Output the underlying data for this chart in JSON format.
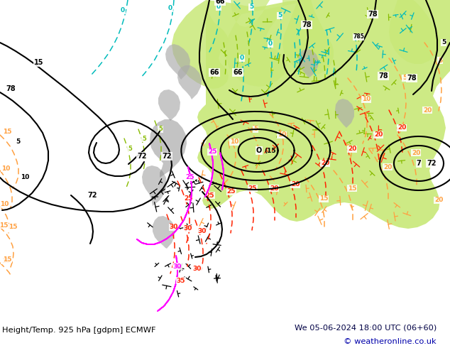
{
  "title_left": "Height/Temp. 925 hPa [gdpm] ECMWF",
  "title_right": "We 05-06-2024 18:00 UTC (06+60)",
  "copyright": "© weatheronline.co.uk",
  "bg_color": "#ffffff",
  "bottom_bar_bg": "#d4d4d4",
  "text_color_left": "#000000",
  "text_color_right": "#000044",
  "text_color_copyright": "#0000aa",
  "figsize": [
    6.34,
    4.9
  ],
  "dpi": 100,
  "map_bg": "#f0f0f0",
  "land_light_green": "#c8e878",
  "land_gray": "#aaaaaa",
  "ocean_bg": "#f8f8f8",
  "geop_line_color": "#000000",
  "temp_orange": "#FFA040",
  "temp_cyan": "#00BBBB",
  "temp_red": "#FF2200",
  "temp_magenta": "#FF00FF",
  "temp_green": "#88BB00",
  "wind_black": "#000000"
}
